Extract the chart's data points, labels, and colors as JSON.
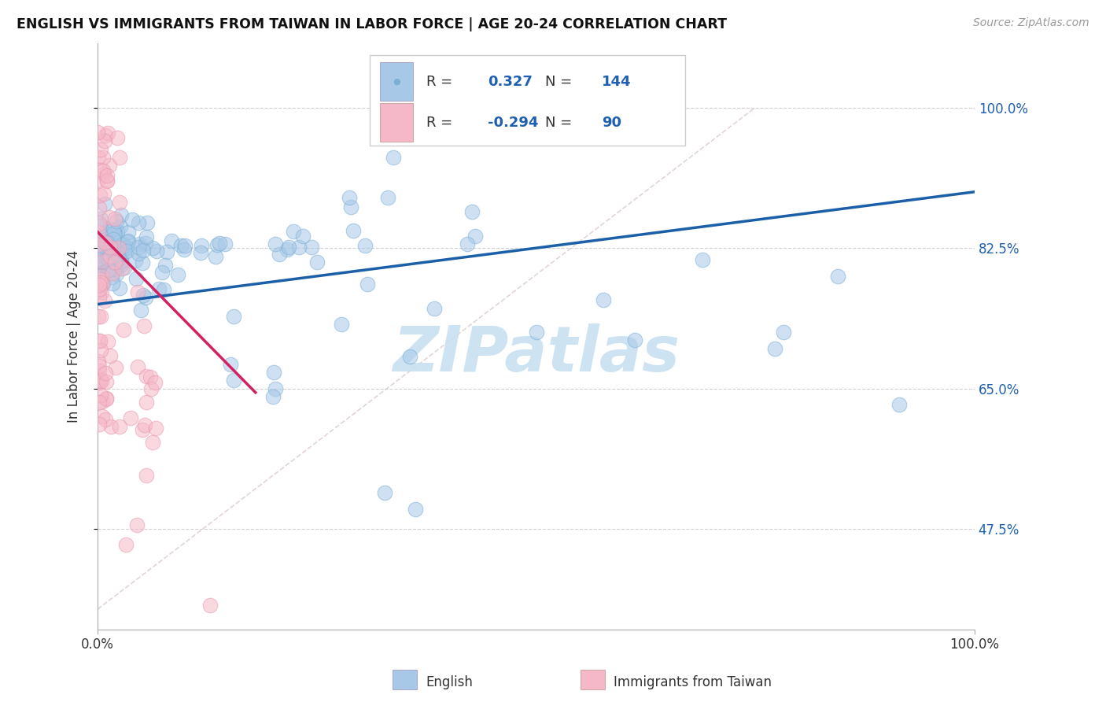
{
  "title": "ENGLISH VS IMMIGRANTS FROM TAIWAN IN LABOR FORCE | AGE 20-24 CORRELATION CHART",
  "source": "Source: ZipAtlas.com",
  "ylabel": "In Labor Force | Age 20-24",
  "xlim": [
    0.0,
    1.0
  ],
  "ylim": [
    0.35,
    1.08
  ],
  "ytick_vals": [
    0.475,
    0.65,
    0.825,
    1.0
  ],
  "ytick_labels": [
    "47.5%",
    "65.0%",
    "82.5%",
    "100.0%"
  ],
  "xtick_vals": [
    0.0,
    1.0
  ],
  "xtick_labels": [
    "0.0%",
    "100.0%"
  ],
  "r_english": "0.327",
  "n_english": "144",
  "r_taiwan": "-0.294",
  "n_taiwan": "90",
  "english_fill": "#a8c8e8",
  "english_edge": "#7ab0d4",
  "taiwan_fill": "#f5b8c8",
  "taiwan_edge": "#e898b0",
  "english_line_color": "#1a5fa8",
  "taiwan_line_color": "#d42060",
  "grid_color": "#d0d0d0",
  "diag_color": "#e0d0d0",
  "watermark_color": "#c5dff0",
  "eng_line_x": [
    0.0,
    1.0
  ],
  "eng_line_y": [
    0.755,
    0.895
  ],
  "tai_line_x": [
    0.0,
    0.18
  ],
  "tai_line_y": [
    0.845,
    0.645
  ],
  "diag_line_x": [
    0.0,
    0.75
  ],
  "diag_line_y": [
    0.375,
    1.0
  ]
}
